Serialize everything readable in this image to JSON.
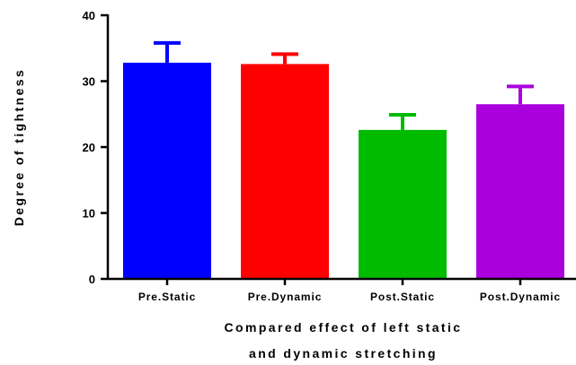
{
  "chart_data": {
    "type": "bar",
    "categories": [
      "Pre.Static",
      "Pre.Dynamic",
      "Post.Static",
      "Post.Dynamic"
    ],
    "values": [
      32.8,
      32.6,
      22.6,
      26.5
    ],
    "error_upper": [
      35.8,
      34.1,
      24.9,
      29.2
    ],
    "colors": [
      "#0000ff",
      "#ff0000",
      "#00bb00",
      "#aa00dd"
    ],
    "xlabel_lines": [
      "Compared effect of left static",
      "and dynamic stretching"
    ],
    "ylabel": "Degree of tightness",
    "ylim": [
      0,
      40
    ],
    "yticks": [
      0,
      10,
      20,
      30,
      40
    ],
    "grid": false
  }
}
